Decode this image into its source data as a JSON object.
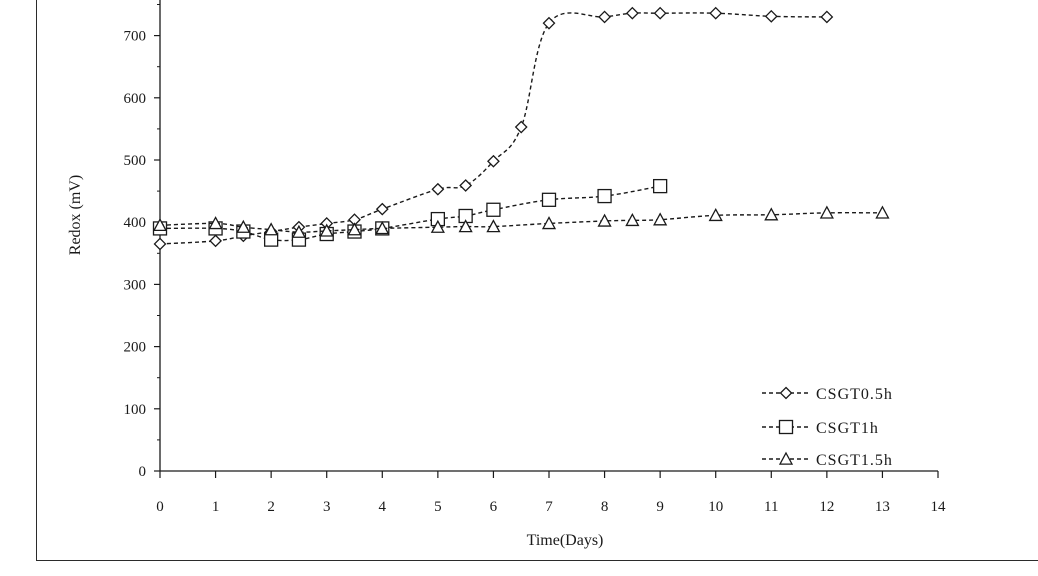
{
  "chart_data": {
    "type": "line",
    "title": "",
    "xlabel": "Time(Days)",
    "ylabel": "Redox (mV)",
    "xlim": [
      0,
      14
    ],
    "ylim": [
      0,
      750
    ],
    "x_ticks": [
      0,
      1,
      2,
      3,
      4,
      5,
      6,
      7,
      8,
      9,
      10,
      11,
      12,
      13,
      14
    ],
    "y_ticks": [
      0,
      100,
      200,
      300,
      400,
      500,
      600,
      700
    ],
    "grid": false,
    "legend_position": "bottom-right",
    "series": [
      {
        "name": "CSGT0.5h",
        "marker": "diamond",
        "line_style": "dashed",
        "color": "#1a1a1a",
        "x": [
          0,
          1,
          1.5,
          2,
          2.5,
          3,
          3.5,
          4,
          5,
          5.5,
          6,
          6.5,
          7,
          8,
          8.5,
          9,
          10,
          11,
          12
        ],
        "y": [
          365,
          370,
          378,
          385,
          392,
          398,
          404,
          421,
          453,
          459,
          498,
          553,
          720,
          730,
          736,
          736,
          736,
          731,
          730
        ]
      },
      {
        "name": "CSGT1h",
        "marker": "square",
        "line_style": "dashed",
        "color": "#1a1a1a",
        "x": [
          0,
          1,
          1.5,
          2,
          2.5,
          3,
          3.5,
          4,
          5,
          5.5,
          6,
          7,
          8,
          9
        ],
        "y": [
          390,
          390,
          385,
          372,
          372,
          381,
          385,
          390,
          405,
          410,
          420,
          436,
          442,
          458
        ]
      },
      {
        "name": "CSGT1.5h",
        "marker": "triangle",
        "line_style": "dashed",
        "color": "#1a1a1a",
        "x": [
          0,
          1,
          1.5,
          2,
          2.5,
          3,
          3.5,
          4,
          5,
          5.5,
          6,
          7,
          8,
          8.5,
          9,
          10,
          11,
          12,
          13
        ],
        "y": [
          395,
          398,
          392,
          388,
          384,
          386,
          388,
          390,
          392,
          393,
          393,
          398,
          402,
          403,
          404,
          411,
          412,
          415,
          415
        ]
      }
    ]
  }
}
